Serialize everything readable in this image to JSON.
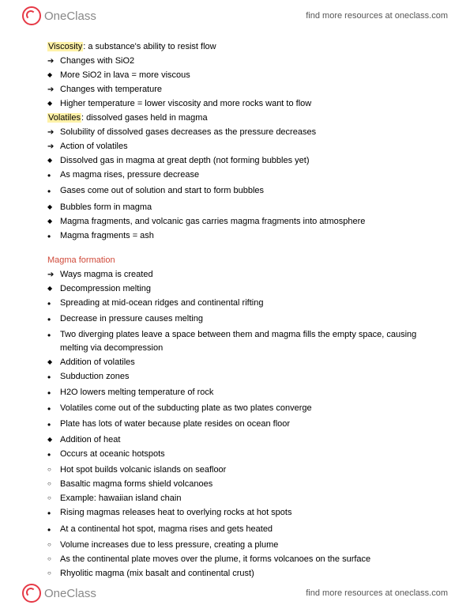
{
  "header": {
    "logo_text": "OneClass",
    "link_text": "find more resources at oneclass.com"
  },
  "footer": {
    "logo_text": "OneClass",
    "link_text": "find more resources at oneclass.com"
  },
  "viscosity": {
    "term": "Viscosity",
    "def": ": a substance's ability to resist flow",
    "c1": "Changes with SiO2",
    "c1a": "More SiO2 in lava = more viscous",
    "c2": "Changes with temperature",
    "c2a": "Higher temperature = lower viscosity and more rocks want to flow"
  },
  "volatiles": {
    "term": "Volatiles",
    "def": ": dissolved gases held in magma",
    "v1": "Solubility of dissolved gases decreases as the pressure decreases",
    "v2": "Action of volatiles",
    "v2a": "Dissolved gas in magma at great depth (not forming bubbles yet)",
    "v2a1": "As magma rises, pressure decrease",
    "v2a1a": "Gases come out of solution and start to form bubbles",
    "v2b": "Bubbles form in magma",
    "v2c": "Magma fragments, and volcanic gas carries magma fragments into atmosphere",
    "v2c1": "Magma fragments = ash"
  },
  "magma": {
    "title": "Magma formation",
    "m1": "Ways magma is created",
    "m1a": "Decompression melting",
    "m1a1": "Spreading at mid-ocean ridges and continental rifting",
    "m1a2": "Decrease in pressure causes melting",
    "m1a3": "Two diverging plates leave a space between them and magma fills the empty space, causing melting via decompression",
    "m1b": "Addition of volatiles",
    "m1b1": "Subduction zones",
    "m1b2": "H2O lowers melting temperature of rock",
    "m1b3": "Volatiles come out of the subducting plate as two plates converge",
    "m1b4": "Plate has lots of water because plate resides on ocean floor",
    "m1c": "Addition of heat",
    "m1c1": "Occurs at oceanic hotspots",
    "m1c1a": "Hot spot builds volcanic islands on seafloor",
    "m1c1b": "Basaltic magma forms shield volcanoes",
    "m1c1c": "Example: hawaiian island chain",
    "m1c2": "Rising magmas releases heat to overlying rocks at hot spots",
    "m1c3": "At a continental hot spot, magma rises and gets heated",
    "m1c3a": "Volume increases due to less pressure, creating a plume",
    "m1c3b": "As the continental plate moves over the plume, it forms volcanoes on the surface",
    "m1c3c": "Rhyolitic magma (mix basalt and continental crust)"
  }
}
